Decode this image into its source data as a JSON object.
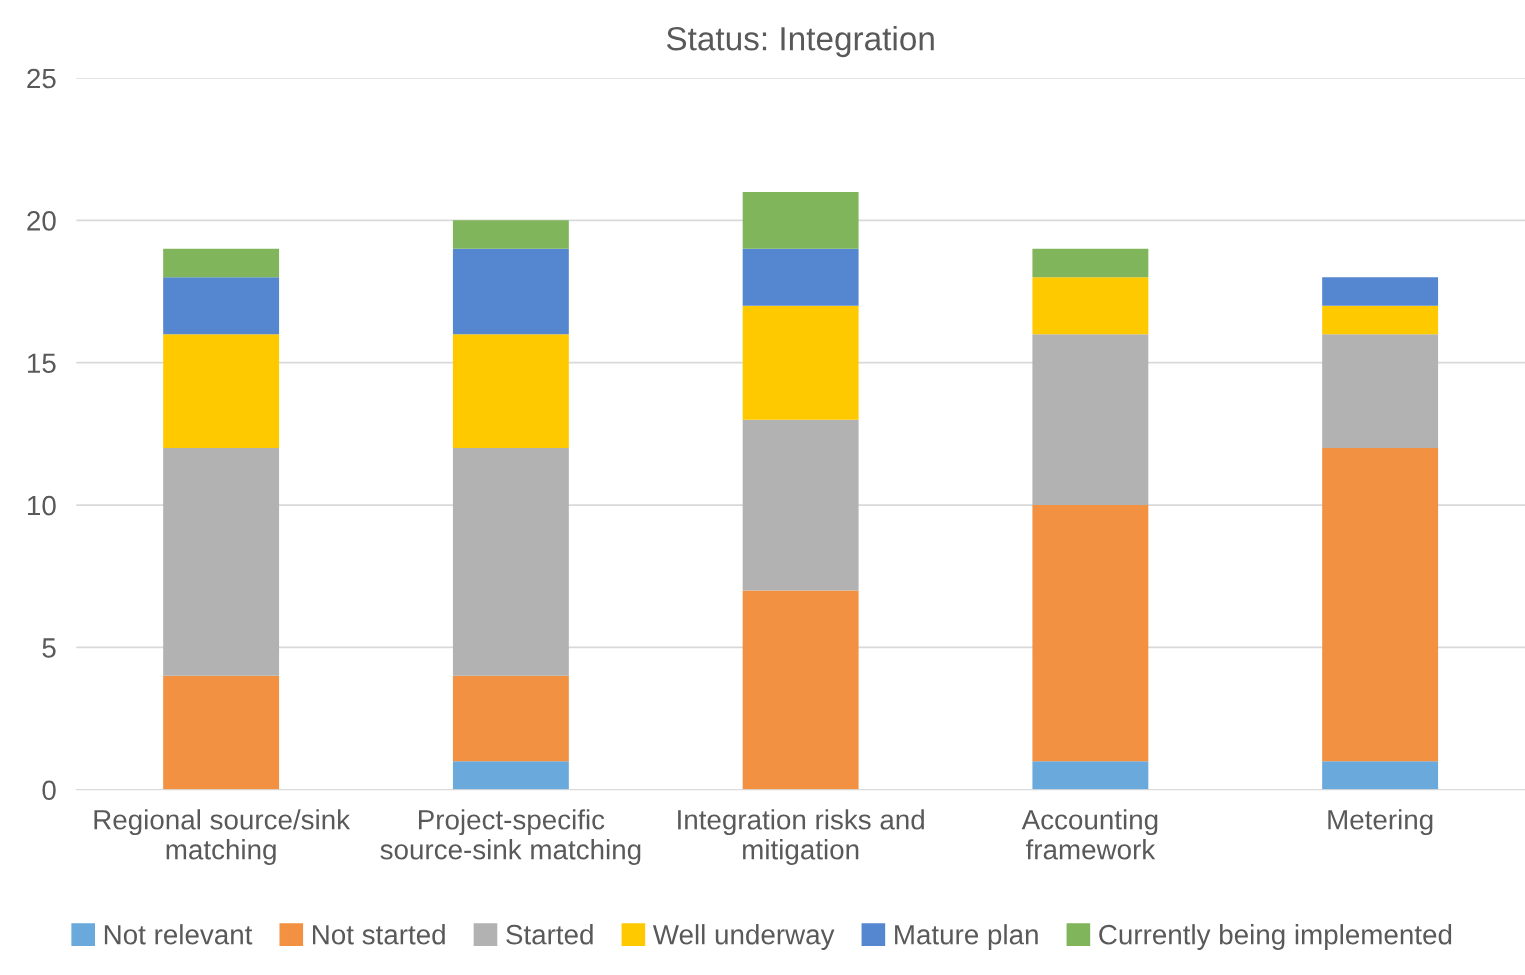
{
  "chart_data": {
    "type": "bar",
    "title": "Status: Integration",
    "stacked": true,
    "categories": [
      "Regional source/sink\nmatching",
      "Project-specific\nsource-sink matching",
      "Integration risks and\nmitigation",
      "Accounting\nframework",
      "Metering"
    ],
    "series": [
      {
        "name": "Not relevant",
        "color": "#6aa9dc",
        "values": [
          0,
          1,
          0,
          1,
          1
        ]
      },
      {
        "name": "Not started",
        "color": "#f19141",
        "values": [
          4,
          3,
          7,
          9,
          11
        ]
      },
      {
        "name": "Started",
        "color": "#b2b2b2",
        "values": [
          8,
          8,
          6,
          6,
          4
        ]
      },
      {
        "name": "Well underway",
        "color": "#ffc900",
        "values": [
          4,
          4,
          4,
          2,
          1
        ]
      },
      {
        "name": "Mature plan",
        "color": "#5586d0",
        "values": [
          2,
          3,
          2,
          0,
          1
        ]
      },
      {
        "name": "Currently being implemented",
        "color": "#80b55b",
        "values": [
          1,
          1,
          2,
          1,
          0
        ]
      }
    ],
    "ylim": [
      0,
      25
    ],
    "yticks": [
      0,
      5,
      10,
      15,
      20,
      25
    ],
    "grid": "y",
    "legend": "bottom"
  }
}
